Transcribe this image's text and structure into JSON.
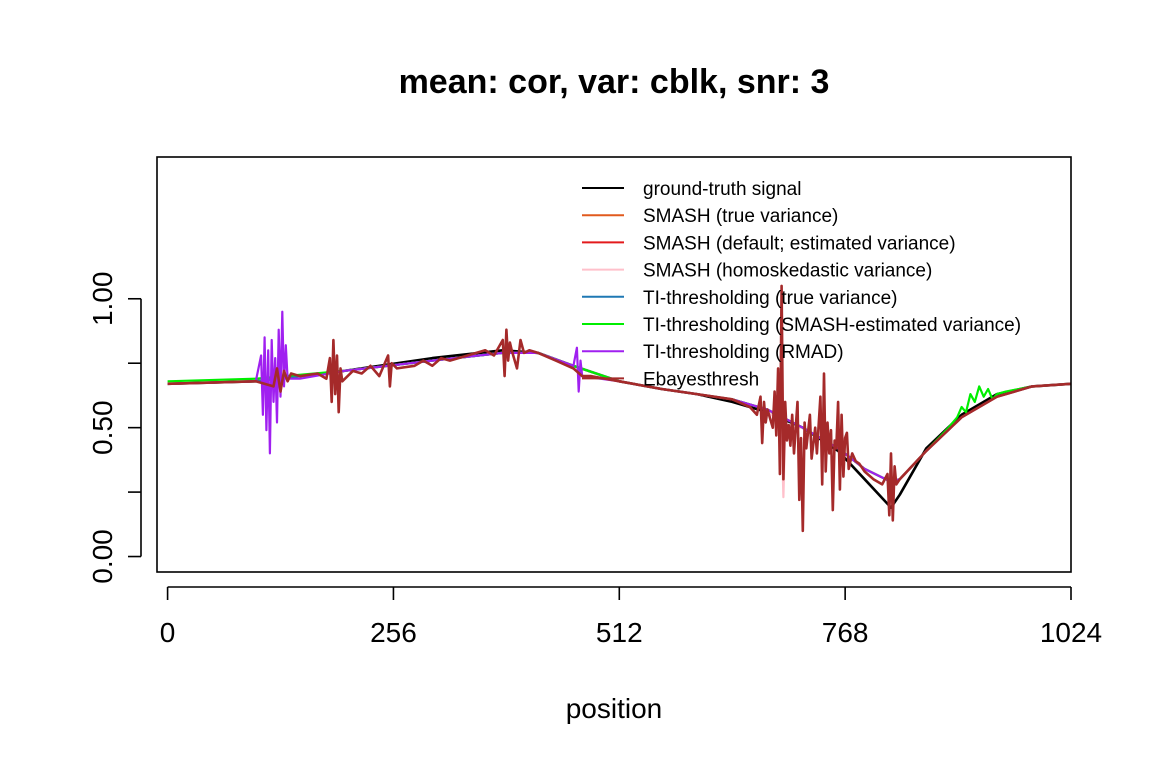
{
  "chart_data": {
    "type": "line",
    "title": "mean: cor, var: cblk, snr: 3",
    "xlabel": "position",
    "ylabel": "",
    "xlim": [
      -12,
      1024
    ],
    "ylim": [
      -0.06,
      1.55
    ],
    "x_ticks": [
      0,
      256,
      512,
      768,
      1024
    ],
    "x_tick_labels": [
      "0",
      "256",
      "512",
      "768",
      "1024"
    ],
    "y_ticks": [
      0.0,
      0.25,
      0.5,
      0.75,
      1.0
    ],
    "y_tick_labels": [
      "0.00",
      "",
      "0.50",
      "",
      "1.00"
    ],
    "grid": false,
    "legend_position": "top-right",
    "series": [
      {
        "name": "ground-truth signal",
        "color": "#000000",
        "points": [
          [
            0,
            0.67
          ],
          [
            100,
            0.68
          ],
          [
            200,
            0.72
          ],
          [
            300,
            0.77
          ],
          [
            380,
            0.8
          ],
          [
            420,
            0.79
          ],
          [
            460,
            0.74
          ],
          [
            512,
            0.68
          ],
          [
            560,
            0.65
          ],
          [
            600,
            0.63
          ],
          [
            640,
            0.6
          ],
          [
            680,
            0.56
          ],
          [
            720,
            0.5
          ],
          [
            760,
            0.41
          ],
          [
            790,
            0.3
          ],
          [
            820,
            0.19
          ],
          [
            830,
            0.24
          ],
          [
            860,
            0.42
          ],
          [
            900,
            0.55
          ],
          [
            940,
            0.63
          ],
          [
            980,
            0.66
          ],
          [
            1024,
            0.67
          ]
        ]
      },
      {
        "name": "SMASH (true variance)",
        "color": "#e15a1e",
        "points": [
          [
            0,
            0.67
          ],
          [
            100,
            0.68
          ],
          [
            200,
            0.72
          ],
          [
            300,
            0.76
          ],
          [
            380,
            0.79
          ],
          [
            420,
            0.79
          ],
          [
            460,
            0.74
          ],
          [
            512,
            0.68
          ],
          [
            560,
            0.65
          ],
          [
            600,
            0.63
          ],
          [
            640,
            0.61
          ],
          [
            680,
            0.57
          ],
          [
            720,
            0.5
          ],
          [
            760,
            0.42
          ],
          [
            790,
            0.34
          ],
          [
            820,
            0.29
          ],
          [
            830,
            0.3
          ],
          [
            860,
            0.41
          ],
          [
            900,
            0.54
          ],
          [
            940,
            0.62
          ],
          [
            980,
            0.66
          ],
          [
            1024,
            0.67
          ]
        ]
      },
      {
        "name": "SMASH (default; estimated variance)",
        "color": "#e31a1c",
        "points": [
          [
            0,
            0.67
          ],
          [
            100,
            0.68
          ],
          [
            200,
            0.72
          ],
          [
            300,
            0.76
          ],
          [
            380,
            0.79
          ],
          [
            420,
            0.79
          ],
          [
            460,
            0.74
          ],
          [
            512,
            0.68
          ],
          [
            560,
            0.65
          ],
          [
            600,
            0.63
          ],
          [
            640,
            0.61
          ],
          [
            680,
            0.57
          ],
          [
            720,
            0.5
          ],
          [
            760,
            0.42
          ],
          [
            790,
            0.34
          ],
          [
            820,
            0.29
          ],
          [
            830,
            0.3
          ],
          [
            860,
            0.41
          ],
          [
            900,
            0.54
          ],
          [
            940,
            0.62
          ],
          [
            980,
            0.66
          ],
          [
            1024,
            0.67
          ]
        ]
      },
      {
        "name": "SMASH (homoskedastic variance)",
        "color": "#ffc0cb",
        "points": [
          [
            0,
            0.67
          ],
          [
            100,
            0.68
          ],
          [
            200,
            0.72
          ],
          [
            300,
            0.76
          ],
          [
            380,
            0.79
          ],
          [
            420,
            0.79
          ],
          [
            460,
            0.74
          ],
          [
            512,
            0.68
          ],
          [
            560,
            0.65
          ],
          [
            600,
            0.63
          ],
          [
            640,
            0.61
          ],
          [
            680,
            0.57
          ],
          [
            696,
            0.5
          ],
          [
            698,
            0.23
          ],
          [
            700,
            0.5
          ],
          [
            720,
            0.5
          ],
          [
            760,
            0.42
          ],
          [
            790,
            0.34
          ],
          [
            820,
            0.29
          ],
          [
            830,
            0.3
          ],
          [
            860,
            0.41
          ],
          [
            900,
            0.54
          ],
          [
            940,
            0.62
          ],
          [
            980,
            0.66
          ],
          [
            1024,
            0.67
          ]
        ]
      },
      {
        "name": "TI-thresholding (true variance)",
        "color": "#1f78b4",
        "points": [
          [
            0,
            0.67
          ],
          [
            100,
            0.68
          ],
          [
            200,
            0.72
          ],
          [
            300,
            0.76
          ],
          [
            380,
            0.79
          ],
          [
            420,
            0.79
          ],
          [
            460,
            0.74
          ],
          [
            512,
            0.68
          ],
          [
            560,
            0.65
          ],
          [
            600,
            0.63
          ],
          [
            640,
            0.61
          ],
          [
            680,
            0.57
          ],
          [
            720,
            0.5
          ],
          [
            760,
            0.42
          ],
          [
            790,
            0.34
          ],
          [
            820,
            0.29
          ],
          [
            830,
            0.3
          ],
          [
            860,
            0.41
          ],
          [
            900,
            0.54
          ],
          [
            940,
            0.62
          ],
          [
            980,
            0.66
          ],
          [
            1024,
            0.67
          ]
        ]
      },
      {
        "name": "TI-thresholding (SMASH-estimated variance)",
        "color": "#00ee00",
        "points": [
          [
            0,
            0.68
          ],
          [
            100,
            0.69
          ],
          [
            200,
            0.72
          ],
          [
            300,
            0.76
          ],
          [
            380,
            0.79
          ],
          [
            420,
            0.79
          ],
          [
            460,
            0.74
          ],
          [
            512,
            0.68
          ],
          [
            560,
            0.65
          ],
          [
            600,
            0.63
          ],
          [
            640,
            0.61
          ],
          [
            680,
            0.57
          ],
          [
            720,
            0.5
          ],
          [
            760,
            0.42
          ],
          [
            790,
            0.34
          ],
          [
            820,
            0.29
          ],
          [
            830,
            0.3
          ],
          [
            860,
            0.41
          ],
          [
            885,
            0.5
          ],
          [
            895,
            0.54
          ],
          [
            900,
            0.58
          ],
          [
            905,
            0.56
          ],
          [
            910,
            0.63
          ],
          [
            915,
            0.6
          ],
          [
            920,
            0.66
          ],
          [
            925,
            0.62
          ],
          [
            930,
            0.65
          ],
          [
            935,
            0.61
          ],
          [
            940,
            0.63
          ],
          [
            950,
            0.64
          ],
          [
            980,
            0.66
          ],
          [
            1024,
            0.67
          ]
        ]
      },
      {
        "name": "TI-thresholding (RMAD)",
        "color": "#a020f0",
        "points": [
          [
            0,
            0.67
          ],
          [
            100,
            0.68
          ],
          [
            106,
            0.78
          ],
          [
            108,
            0.55
          ],
          [
            110,
            0.85
          ],
          [
            112,
            0.49
          ],
          [
            114,
            0.8
          ],
          [
            116,
            0.4
          ],
          [
            118,
            0.84
          ],
          [
            120,
            0.6
          ],
          [
            122,
            0.77
          ],
          [
            124,
            0.52
          ],
          [
            126,
            0.88
          ],
          [
            128,
            0.62
          ],
          [
            130,
            0.95
          ],
          [
            132,
            0.66
          ],
          [
            134,
            0.82
          ],
          [
            136,
            0.69
          ],
          [
            150,
            0.69
          ],
          [
            200,
            0.72
          ],
          [
            300,
            0.76
          ],
          [
            380,
            0.79
          ],
          [
            420,
            0.79
          ],
          [
            460,
            0.74
          ],
          [
            464,
            0.81
          ],
          [
            466,
            0.64
          ],
          [
            468,
            0.76
          ],
          [
            470,
            0.7
          ],
          [
            512,
            0.68
          ],
          [
            560,
            0.65
          ],
          [
            600,
            0.63
          ],
          [
            640,
            0.61
          ],
          [
            680,
            0.57
          ],
          [
            720,
            0.5
          ],
          [
            760,
            0.42
          ],
          [
            790,
            0.34
          ],
          [
            820,
            0.29
          ],
          [
            830,
            0.3
          ],
          [
            860,
            0.41
          ],
          [
            900,
            0.54
          ],
          [
            940,
            0.62
          ],
          [
            980,
            0.66
          ],
          [
            1024,
            0.67
          ]
        ]
      },
      {
        "name": "Ebayesthresh",
        "color": "#a52a2a",
        "points": [
          [
            0,
            0.67
          ],
          [
            100,
            0.68
          ],
          [
            120,
            0.66
          ],
          [
            124,
            0.73
          ],
          [
            128,
            0.64
          ],
          [
            132,
            0.72
          ],
          [
            136,
            0.68
          ],
          [
            140,
            0.71
          ],
          [
            150,
            0.7
          ],
          [
            170,
            0.71
          ],
          [
            180,
            0.69
          ],
          [
            184,
            0.77
          ],
          [
            186,
            0.6
          ],
          [
            188,
            0.84
          ],
          [
            190,
            0.63
          ],
          [
            192,
            0.78
          ],
          [
            194,
            0.56
          ],
          [
            196,
            0.73
          ],
          [
            198,
            0.68
          ],
          [
            210,
            0.72
          ],
          [
            220,
            0.71
          ],
          [
            230,
            0.74
          ],
          [
            240,
            0.7
          ],
          [
            250,
            0.78
          ],
          [
            252,
            0.66
          ],
          [
            254,
            0.75
          ],
          [
            260,
            0.73
          ],
          [
            280,
            0.74
          ],
          [
            290,
            0.76
          ],
          [
            300,
            0.74
          ],
          [
            310,
            0.77
          ],
          [
            320,
            0.76
          ],
          [
            340,
            0.78
          ],
          [
            360,
            0.8
          ],
          [
            370,
            0.78
          ],
          [
            380,
            0.84
          ],
          [
            382,
            0.7
          ],
          [
            384,
            0.88
          ],
          [
            386,
            0.76
          ],
          [
            388,
            0.83
          ],
          [
            390,
            0.8
          ],
          [
            396,
            0.73
          ],
          [
            400,
            0.84
          ],
          [
            404,
            0.79
          ],
          [
            410,
            0.8
          ],
          [
            420,
            0.79
          ],
          [
            440,
            0.76
          ],
          [
            460,
            0.73
          ],
          [
            470,
            0.7
          ],
          [
            480,
            0.7
          ],
          [
            512,
            0.68
          ],
          [
            560,
            0.65
          ],
          [
            600,
            0.63
          ],
          [
            640,
            0.61
          ],
          [
            660,
            0.58
          ],
          [
            668,
            0.55
          ],
          [
            672,
            0.62
          ],
          [
            674,
            0.44
          ],
          [
            676,
            0.6
          ],
          [
            678,
            0.52
          ],
          [
            680,
            0.57
          ],
          [
            686,
            0.5
          ],
          [
            688,
            0.64
          ],
          [
            690,
            0.47
          ],
          [
            692,
            0.73
          ],
          [
            694,
            0.32
          ],
          [
            696,
            1.05
          ],
          [
            698,
            0.3
          ],
          [
            700,
            0.6
          ],
          [
            702,
            0.45
          ],
          [
            704,
            0.51
          ],
          [
            706,
            0.43
          ],
          [
            708,
            0.55
          ],
          [
            710,
            0.4
          ],
          [
            714,
            0.6
          ],
          [
            716,
            0.22
          ],
          [
            718,
            0.46
          ],
          [
            720,
            0.1
          ],
          [
            722,
            0.52
          ],
          [
            724,
            0.42
          ],
          [
            728,
            0.55
          ],
          [
            730,
            0.38
          ],
          [
            734,
            0.5
          ],
          [
            736,
            0.4
          ],
          [
            740,
            0.62
          ],
          [
            742,
            0.28
          ],
          [
            744,
            0.71
          ],
          [
            746,
            0.33
          ],
          [
            748,
            0.52
          ],
          [
            750,
            0.4
          ],
          [
            752,
            0.49
          ],
          [
            754,
            0.18
          ],
          [
            756,
            0.45
          ],
          [
            758,
            0.42
          ],
          [
            760,
            0.6
          ],
          [
            762,
            0.26
          ],
          [
            764,
            0.55
          ],
          [
            766,
            0.31
          ],
          [
            768,
            0.46
          ],
          [
            770,
            0.48
          ],
          [
            772,
            0.34
          ],
          [
            776,
            0.4
          ],
          [
            780,
            0.37
          ],
          [
            784,
            0.36
          ],
          [
            790,
            0.33
          ],
          [
            800,
            0.3
          ],
          [
            810,
            0.28
          ],
          [
            816,
            0.32
          ],
          [
            818,
            0.16
          ],
          [
            820,
            0.4
          ],
          [
            822,
            0.14
          ],
          [
            824,
            0.35
          ],
          [
            826,
            0.28
          ],
          [
            830,
            0.3
          ],
          [
            860,
            0.41
          ],
          [
            900,
            0.54
          ],
          [
            940,
            0.62
          ],
          [
            980,
            0.66
          ],
          [
            1024,
            0.67
          ]
        ]
      }
    ]
  }
}
